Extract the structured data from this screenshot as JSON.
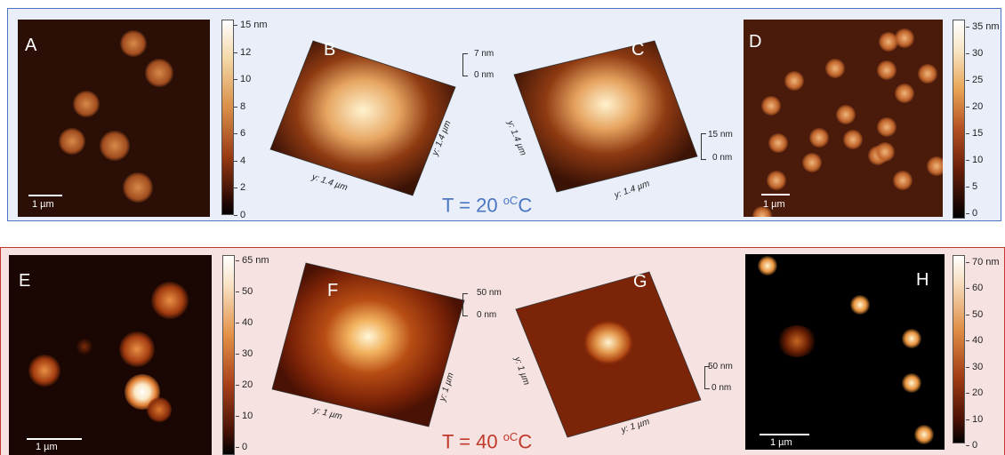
{
  "top": {
    "temperature": "T = 20 ",
    "unit": "oC",
    "temp_color": "#4a76c4",
    "panel_a": {
      "letter": "A",
      "scale": "1 µm"
    },
    "colorbar_a": [
      "15 nm",
      "12",
      "10",
      "8",
      "6",
      "4",
      "2",
      "0"
    ],
    "panel_b": {
      "letter": "B",
      "axis1": "y: 1.4 µm",
      "axis2": "y: 1.4 µm",
      "z_top": "7 nm",
      "z_bottom": "0 nm"
    },
    "panel_c": {
      "letter": "C",
      "axis1": "y: 1.4 µm",
      "axis2": "y: 1.4 µm",
      "z_top": "15 nm",
      "z_bottom": "0 nm"
    },
    "panel_d": {
      "letter": "D",
      "scale": "1 µm"
    },
    "colorbar_d": [
      "35 nm",
      "30",
      "25",
      "20",
      "15",
      "10",
      "5",
      "0"
    ]
  },
  "bottom": {
    "temperature": "T = 40 ",
    "unit": "oC",
    "temp_color": "#c0392b",
    "panel_e": {
      "letter": "E",
      "scale": "1 µm"
    },
    "colorbar_e": [
      "65 nm",
      "50",
      "40",
      "30",
      "20",
      "10",
      "0"
    ],
    "panel_f": {
      "letter": "F",
      "axis1": "y: 1 µm",
      "axis2": "y: 1 µm",
      "z_top": "50 nm",
      "z_bottom": "0 nm"
    },
    "panel_g": {
      "letter": "G",
      "axis1": "y: 1 µm",
      "axis2": "y: 1 µm",
      "z_top": "50 nm",
      "z_bottom": "0 nm"
    },
    "panel_h": {
      "letter": "H",
      "scale": "1 µm"
    },
    "colorbar_h": [
      "70 nm",
      "60",
      "50",
      "40",
      "30",
      "20",
      "10",
      "0"
    ]
  }
}
